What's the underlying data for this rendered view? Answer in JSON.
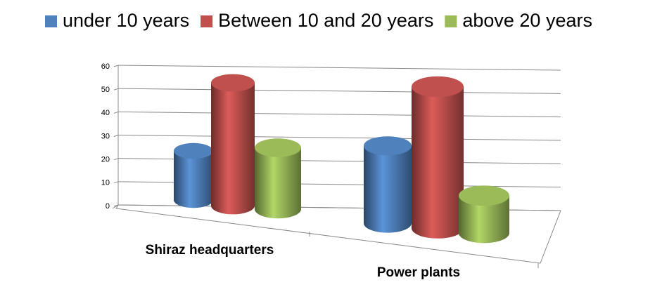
{
  "chart_data": {
    "type": "bar3d_cylinder",
    "categories": [
      "Shiraz headquarters",
      "Power plants"
    ],
    "series": [
      {
        "name": "under 10 years",
        "color": "#4f81bd",
        "values": [
          20,
          29
        ]
      },
      {
        "name": "Between 10 and 20 years",
        "color": "#c0504d",
        "values": [
          50,
          53
        ]
      },
      {
        "name": "above 20 years",
        "color": "#9bbb59",
        "values": [
          25,
          14
        ]
      }
    ],
    "ylim": [
      0,
      60
    ],
    "yticks": [
      0,
      10,
      20,
      30,
      40,
      50,
      60
    ],
    "grid": true,
    "legend": "top"
  }
}
